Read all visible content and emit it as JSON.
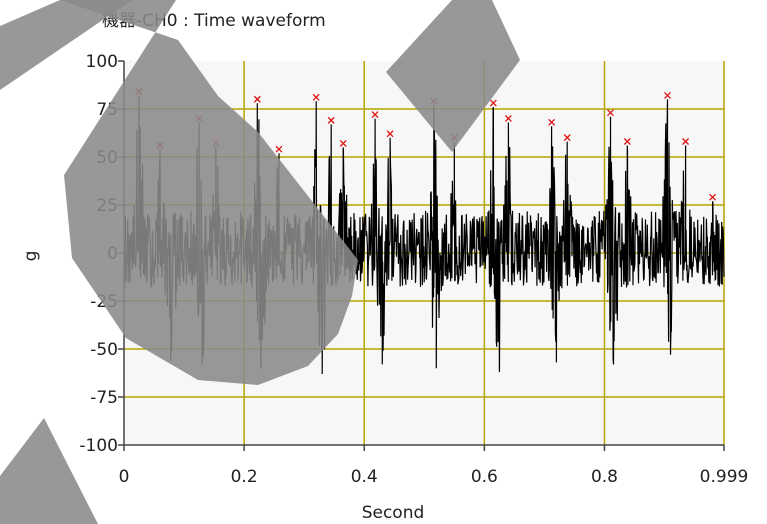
{
  "chart_data": {
    "type": "line",
    "title": "機器-CH0 : Time waveform",
    "xlabel": "Second",
    "ylabel": "g",
    "xlim": [
      0,
      0.999
    ],
    "ylim": [
      -100,
      100
    ],
    "xticks": [
      "0",
      "0.2",
      "0.4",
      "0.6",
      "0.8",
      "0.999"
    ],
    "yticks": [
      "100",
      "75",
      "50",
      "25",
      "0",
      "-25",
      "-50",
      "-75",
      "-100"
    ],
    "grid": true,
    "grid_color": "#b5a500",
    "line_color": "#000000",
    "marker_color": "#e01010",
    "peaks": [
      {
        "x": 0.025,
        "y": 82
      },
      {
        "x": 0.06,
        "y": 54
      },
      {
        "x": 0.125,
        "y": 68
      },
      {
        "x": 0.153,
        "y": 55
      },
      {
        "x": 0.222,
        "y": 78
      },
      {
        "x": 0.258,
        "y": 52
      },
      {
        "x": 0.32,
        "y": 79
      },
      {
        "x": 0.345,
        "y": 67
      },
      {
        "x": 0.365,
        "y": 55
      },
      {
        "x": 0.418,
        "y": 70
      },
      {
        "x": 0.443,
        "y": 60
      },
      {
        "x": 0.516,
        "y": 77
      },
      {
        "x": 0.55,
        "y": 58
      },
      {
        "x": 0.615,
        "y": 76
      },
      {
        "x": 0.64,
        "y": 68
      },
      {
        "x": 0.712,
        "y": 66
      },
      {
        "x": 0.738,
        "y": 58
      },
      {
        "x": 0.81,
        "y": 71
      },
      {
        "x": 0.838,
        "y": 56
      },
      {
        "x": 0.905,
        "y": 80
      },
      {
        "x": 0.935,
        "y": 56
      },
      {
        "x": 0.98,
        "y": 27
      }
    ],
    "lows": [
      {
        "x": 0.078,
        "y": -56
      },
      {
        "x": 0.13,
        "y": -58
      },
      {
        "x": 0.228,
        "y": -60
      },
      {
        "x": 0.33,
        "y": -63
      },
      {
        "x": 0.43,
        "y": -58
      },
      {
        "x": 0.52,
        "y": -60
      },
      {
        "x": 0.625,
        "y": -62
      },
      {
        "x": 0.72,
        "y": -57
      },
      {
        "x": 0.815,
        "y": -58
      },
      {
        "x": 0.91,
        "y": -53
      }
    ]
  }
}
